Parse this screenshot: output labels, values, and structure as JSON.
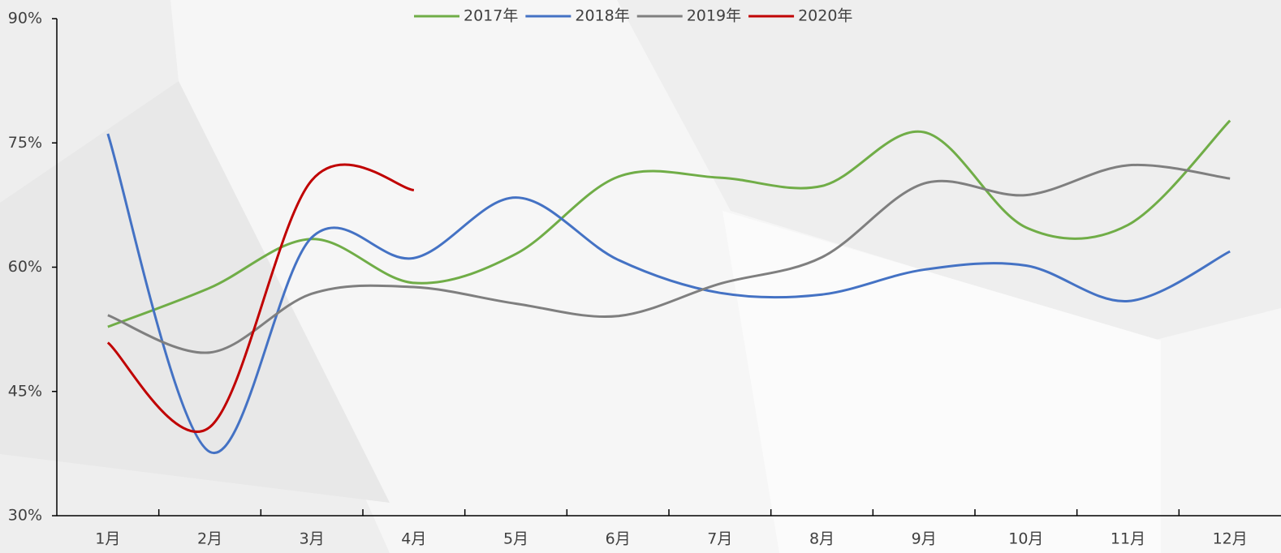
{
  "chart_data": {
    "type": "line",
    "categories": [
      "1月",
      "2月",
      "3月",
      "4月",
      "5月",
      "6月",
      "7月",
      "8月",
      "9月",
      "10月",
      "11月",
      "12月"
    ],
    "series": [
      {
        "name": "2017年",
        "color": "#70ad47",
        "values": [
          52.8,
          57.5,
          63.4,
          58.1,
          61.6,
          70.9,
          70.8,
          69.8,
          76.3,
          64.8,
          65.1,
          77.7
        ]
      },
      {
        "name": "2018年",
        "color": "#4472c4",
        "values": [
          76.1,
          37.7,
          63.6,
          61.1,
          68.4,
          60.9,
          56.9,
          56.7,
          59.7,
          60.2,
          55.9,
          61.9
        ]
      },
      {
        "name": "2019年",
        "color": "#7f7f7f",
        "values": [
          54.2,
          49.7,
          56.8,
          57.6,
          55.6,
          54.1,
          58.0,
          61.2,
          70.1,
          68.7,
          72.3,
          70.7
        ]
      },
      {
        "name": "2020年",
        "color": "#c00000",
        "values": [
          50.9,
          40.7,
          70.5,
          69.3,
          null,
          null,
          null,
          null,
          null,
          null,
          null,
          null
        ]
      }
    ],
    "ylim": [
      30,
      90
    ],
    "yticks": [
      {
        "value": 30,
        "label": "30%"
      },
      {
        "value": 45,
        "label": "45%"
      },
      {
        "value": 60,
        "label": "60%"
      },
      {
        "value": 75,
        "label": "75%"
      },
      {
        "value": 90,
        "label": "90%"
      }
    ],
    "smooth": true,
    "legend": "top"
  }
}
